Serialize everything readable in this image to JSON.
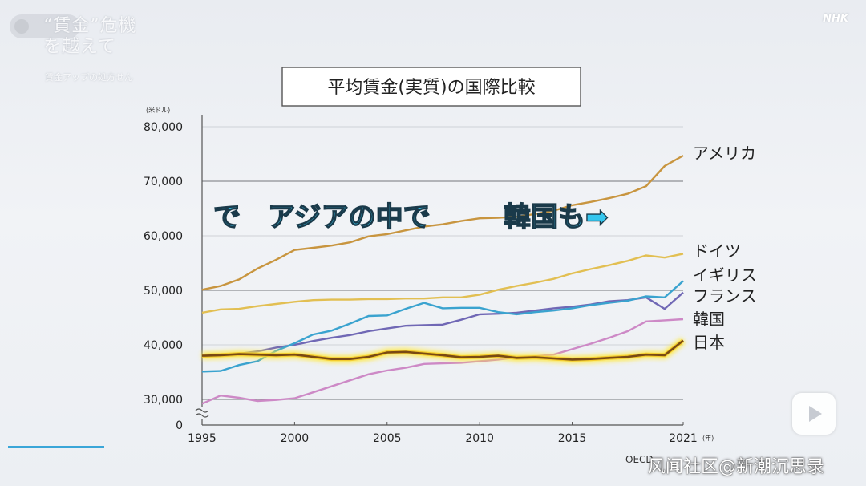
{
  "program_logo": {
    "main": "“賃金”危機を越えて",
    "sub": "賃金アップの処方せん"
  },
  "broadcaster": "NHK",
  "watermark": "风闻社区@新潮沉思录",
  "overlay_caption": {
    "part1": "で",
    "part2": "アジアの中で",
    "part3": "韓国も➡"
  },
  "colors": {
    "usa": "#c8953f",
    "germany": "#e2bf52",
    "uk": "#3aa3cf",
    "france": "#7068b5",
    "korea": "#cd89c6",
    "japan": "#7a4a12",
    "japan_glow": "#ffe93a",
    "caption_fill": "#35c6ee",
    "grid": "#cfd2d7",
    "major_grid": "#8d8f93"
  },
  "chart_data": {
    "type": "line",
    "title": "平均賃金(実質)の国際比較",
    "y_unit": "(米ドル)",
    "x_unit": "(年)",
    "source": "OECD",
    "xlim": [
      1995,
      2021
    ],
    "ylim": [
      30000,
      80000
    ],
    "y_break_label": "0",
    "x_ticks": [
      "1995",
      "2000",
      "2005",
      "2010",
      "2015",
      "2021"
    ],
    "x_tick_values": [
      1995,
      2000,
      2005,
      2010,
      2015,
      2021
    ],
    "y_ticks": [
      "30,000",
      "40,000",
      "50,000",
      "60,000",
      "70,000",
      "80,000"
    ],
    "y_tick_values": [
      30000,
      40000,
      50000,
      60000,
      70000,
      80000
    ],
    "x": [
      1995,
      1996,
      1997,
      1998,
      1999,
      2000,
      2001,
      2002,
      2003,
      2004,
      2005,
      2006,
      2007,
      2008,
      2009,
      2010,
      2011,
      2012,
      2013,
      2014,
      2015,
      2016,
      2017,
      2018,
      2019,
      2020,
      2021
    ],
    "series": [
      {
        "name": "アメリカ",
        "key": "usa",
        "values": [
          50100,
          50800,
          52000,
          54000,
          55600,
          57400,
          57800,
          58200,
          58800,
          59900,
          60300,
          61000,
          61700,
          62100,
          62700,
          63200,
          63300,
          63500,
          64000,
          64600,
          65600,
          66200,
          66900,
          67700,
          69100,
          72800,
          74700
        ]
      },
      {
        "name": "ドイツ",
        "key": "germany",
        "values": [
          45900,
          46500,
          46600,
          47100,
          47500,
          47900,
          48200,
          48300,
          48300,
          48400,
          48400,
          48500,
          48500,
          48700,
          48700,
          49200,
          50100,
          50800,
          51400,
          52100,
          53100,
          53900,
          54600,
          55400,
          56400,
          56000,
          56700
        ]
      },
      {
        "name": "イギリス",
        "key": "uk",
        "values": [
          35100,
          35200,
          36300,
          37000,
          38900,
          40300,
          41900,
          42600,
          43900,
          45300,
          45400,
          46600,
          47700,
          46700,
          46800,
          46800,
          46000,
          45600,
          46000,
          46300,
          46700,
          47300,
          47700,
          48100,
          48900,
          48700,
          51700
        ]
      },
      {
        "name": "フランス",
        "key": "france",
        "values": [
          38000,
          38100,
          38400,
          38800,
          39500,
          40000,
          40700,
          41300,
          41800,
          42500,
          43000,
          43500,
          43600,
          43700,
          44600,
          45600,
          45700,
          45900,
          46300,
          46700,
          47000,
          47400,
          48000,
          48200,
          48700,
          46600,
          49600
        ]
      },
      {
        "name": "韓国",
        "key": "korea",
        "values": [
          29200,
          30700,
          30300,
          29700,
          29900,
          30200,
          31300,
          32400,
          33500,
          34600,
          35300,
          35800,
          36500,
          36600,
          36700,
          37000,
          37300,
          37700,
          37900,
          38200,
          39200,
          40200,
          41300,
          42500,
          44300,
          44500,
          44700
        ]
      },
      {
        "name": "日本",
        "key": "japan",
        "values": [
          38000,
          38100,
          38300,
          38200,
          38100,
          38200,
          37800,
          37400,
          37400,
          37800,
          38600,
          38700,
          38400,
          38100,
          37700,
          37800,
          38000,
          37600,
          37700,
          37500,
          37300,
          37400,
          37600,
          37800,
          38200,
          38100,
          40800
        ]
      }
    ]
  }
}
